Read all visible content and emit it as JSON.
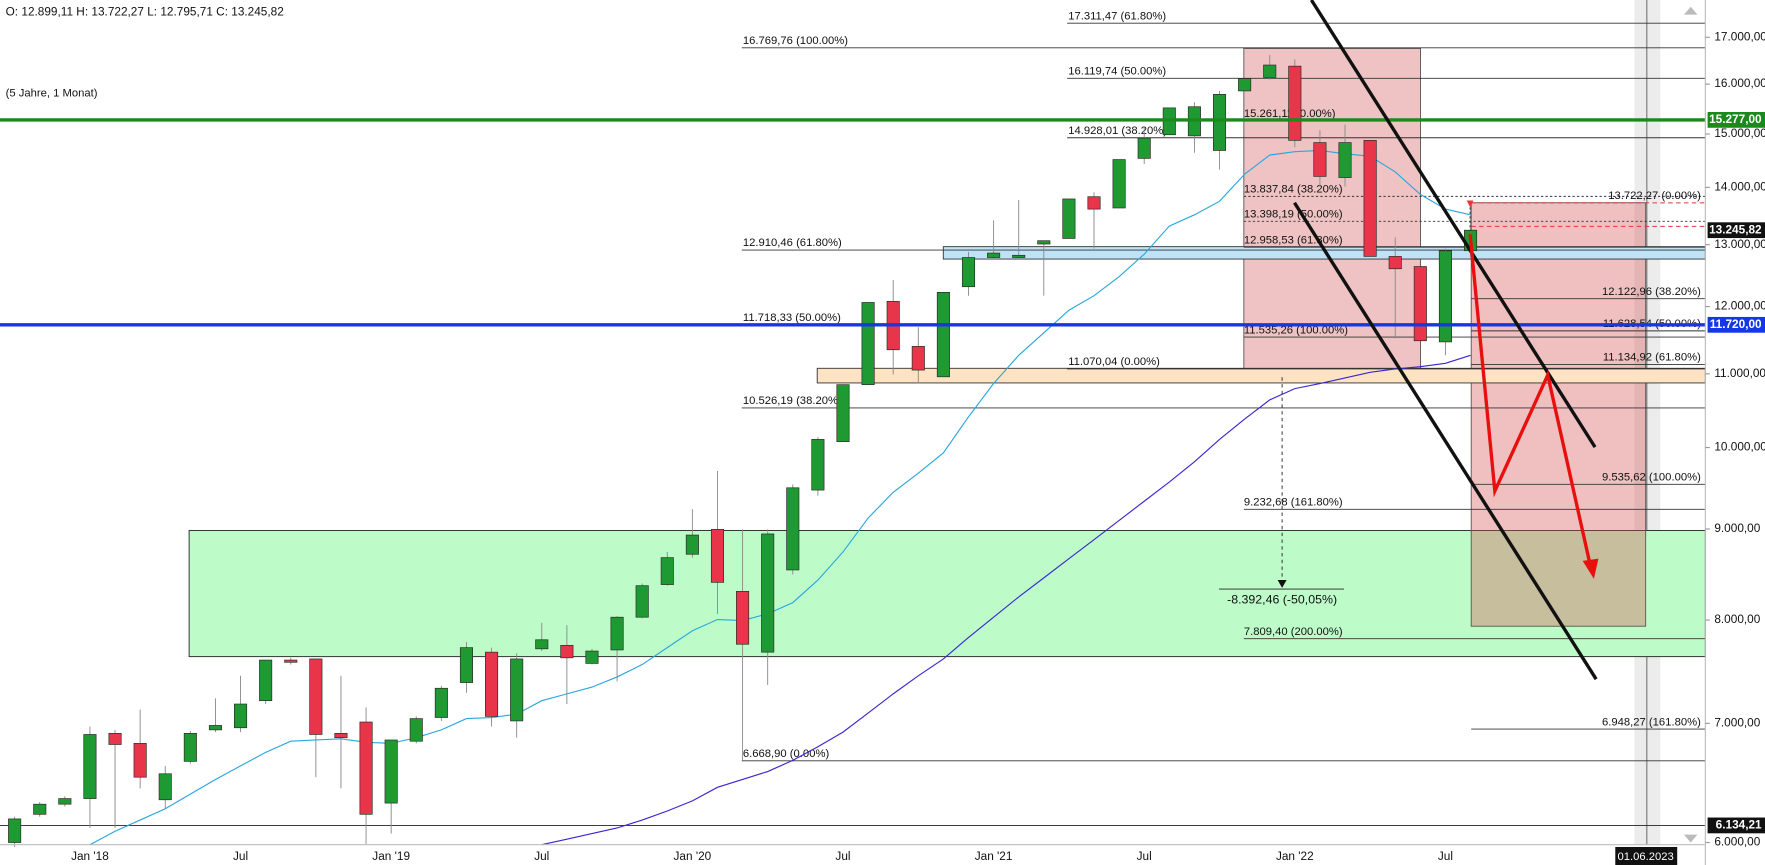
{
  "chart_data": {
    "type": "candlestick",
    "header": "O: 12.899,11  H: 13.722,27  L: 12.795,71  C: 13.245,82",
    "subtitle": "(5 Jahre, 1 Monat)",
    "log_scale": true,
    "ylim": [
      5983,
      17839
    ],
    "yticks": [
      {
        "value": 17000,
        "label": "17.000,00"
      },
      {
        "value": 16000,
        "label": "16.000,00"
      },
      {
        "value": 15000,
        "label": "15.000,00"
      },
      {
        "value": 14000,
        "label": "14.000,00"
      },
      {
        "value": 13000,
        "label": "13.000,00"
      },
      {
        "value": 12000,
        "label": "12.000,00"
      },
      {
        "value": 11000,
        "label": "11.000,00"
      },
      {
        "value": 10000,
        "label": "10.000,00"
      },
      {
        "value": 9000,
        "label": "9.000,00"
      },
      {
        "value": 8000,
        "label": "8.000,00"
      },
      {
        "value": 7000,
        "label": "7.000,00"
      },
      {
        "value": 6000,
        "label": "6.000,00"
      }
    ],
    "grid": false,
    "up_color": "#1f9a32",
    "down_color": "#e8354a",
    "categories": [
      null,
      null,
      null,
      "Jan '18",
      null,
      null,
      null,
      null,
      null,
      "Jul",
      null,
      null,
      null,
      null,
      null,
      "Jan '19",
      null,
      null,
      null,
      null,
      null,
      "Jul",
      null,
      null,
      null,
      null,
      null,
      "Jan '20",
      null,
      null,
      null,
      null,
      null,
      "Jul",
      null,
      null,
      null,
      null,
      null,
      "Jan '21",
      null,
      null,
      null,
      null,
      null,
      "Jul",
      null,
      null,
      null,
      null,
      null,
      "Jan '22",
      null,
      null,
      null,
      null,
      null,
      "Jul",
      null
    ],
    "open": [
      6000,
      6223,
      6305,
      6351,
      6910,
      6821,
      6341,
      6664,
      6941,
      6960,
      7208,
      7597,
      7608,
      6910,
      7012,
      6314,
      6840,
      7053,
      7379,
      7675,
      7022,
      7708,
      7743,
      7564,
      7697,
      8030,
      8376,
      8711,
      8996,
      8303,
      7675,
      8536,
      9465,
      10077,
      10847,
      12082,
      11398,
      10958,
      12312,
      12786,
      12786,
      13011,
      13105,
      13832,
      13632,
      14535,
      14986,
      14964,
      14684,
      15860,
      16139,
      16376,
      14835,
      14179,
      14878,
      12804,
      12638,
      11464,
      12899.11
    ],
    "high": [
      6204,
      6323,
      6370,
      6971,
      6941,
      7125,
      6625,
      6931,
      7230,
      7444,
      7597,
      7619,
      7608,
      7444,
      7146,
      6851,
      7063,
      7347,
      7777,
      7720,
      7664,
      7972,
      7948,
      7708,
      8041,
      8388,
      8737,
      9235,
      9702,
      8996,
      8996,
      9534,
      10136,
      10847,
      12064,
      12420,
      11684,
      12223,
      12879,
      13415,
      13772,
      13067,
      13792,
      13913,
      14513,
      15140,
      15516,
      15630,
      15860,
      16139,
      16617,
      16520,
      15074,
      15184,
      14878,
      13125,
      12638,
      12935,
      13722.27
    ],
    "low": [
      5965,
      6204,
      6286,
      6114,
      6114,
      6435,
      6268,
      6644,
      6921,
      6921,
      7177,
      7553,
      6529,
      6435,
      5983,
      6070,
      6821,
      7022,
      7283,
      6971,
      6871,
      7686,
      7177,
      7553,
      7390,
      8018,
      8364,
      8673,
      8065,
      6669,
      7357,
      8486,
      9397,
      10077,
      10847,
      10990,
      10863,
      10958,
      12170,
      12749,
      12749,
      12170,
      13105,
      12935,
      13632,
      14429,
      14986,
      14641,
      14324,
      15860,
      16092,
      14748,
      14015,
      14015,
      12804,
      11515,
      11481,
      11267,
      12795.71
    ],
    "close": [
      6186,
      6305,
      6351,
      6900,
      6811,
      6529,
      6558,
      6910,
      6981,
      7177,
      7597,
      7575,
      6900,
      6871,
      6223,
      6851,
      7043,
      7325,
      7720,
      7063,
      7608,
      7799,
      7619,
      7686,
      8030,
      8364,
      8673,
      8930,
      8400,
      7754,
      8943,
      9493,
      10106,
      10847,
      12064,
      11348,
      11054,
      12223,
      12786,
      12860,
      12823,
      13067,
      13792,
      13612,
      14513,
      14921,
      15516,
      15539,
      15790,
      16115,
      16400,
      14878,
      14200,
      14835,
      12804,
      12601,
      11481,
      12897,
      13245.82
    ],
    "ma_lines": [
      {
        "color": "#2aa6de",
        "values": [
          null,
          null,
          null,
          5983,
          6088,
          6177,
          6268,
          6388,
          6510,
          6625,
          6742,
          6840,
          6851,
          6861,
          6830,
          6821,
          6871,
          6941,
          7043,
          7053,
          7084,
          7208,
          7272,
          7336,
          7433,
          7553,
          7720,
          7890,
          8006,
          7995,
          8065,
          8183,
          8425,
          8737,
          9128,
          9438,
          9674,
          9932,
          10406,
          10863,
          11267,
          11599,
          11943,
          12170,
          12473,
          12841,
          13317,
          13512,
          13750,
          14241,
          14598,
          14662,
          14684,
          14620,
          14577,
          14283,
          13873,
          13612,
          13512
        ]
      },
      {
        "color": "#3826d4",
        "values": [
          null,
          null,
          null,
          null,
          null,
          null,
          null,
          null,
          null,
          null,
          null,
          null,
          null,
          null,
          null,
          null,
          null,
          null,
          null,
          null,
          null,
          5983,
          6026,
          6070,
          6114,
          6177,
          6250,
          6332,
          6444,
          6510,
          6577,
          6673,
          6791,
          6921,
          7094,
          7272,
          7444,
          7608,
          7822,
          8030,
          8243,
          8449,
          8661,
          8877,
          9101,
          9329,
          9563,
          9817,
          10106,
          10376,
          10636,
          10792,
          10863,
          10942,
          11022,
          11070,
          11102,
          11151,
          11267
        ]
      }
    ],
    "fib_levels": [
      [
        {
          "value": 16769.76,
          "label": "16.769,76 (100.00%)"
        },
        {
          "value": 12910.46,
          "label": "12.910,46 (61.80%)"
        },
        {
          "value": 11718.33,
          "label": "11.718,33 (50.00%)"
        },
        {
          "value": 10526.19,
          "label": "10.526,19 (38.20%)"
        },
        {
          "value": 6668.9,
          "label": "6.668,90 (0.00%)"
        }
      ],
      [
        {
          "value": 17311.47,
          "label": "17.311,47 (61.80%)"
        },
        {
          "value": 16119.74,
          "label": "16.119,74 (50.00%)"
        },
        {
          "value": 14928.01,
          "label": "14.928,01 (38.20%)"
        },
        {
          "value": 11070.04,
          "label": "11.070,04 (0.00%)"
        }
      ],
      [
        {
          "value": 15261.11,
          "label": "15.261,11 (0.00%)"
        },
        {
          "value": 13837.84,
          "label": "13.837,84 (38.20%)"
        },
        {
          "value": 13398.19,
          "label": "13.398,19 (50.00%)"
        },
        {
          "value": 12958.53,
          "label": "12.958,53 (61.80%)"
        },
        {
          "value": 11535.26,
          "label": "11.535,26 (100.00%)"
        },
        {
          "value": 9232.68,
          "label": "9.232,68 (161.80%)"
        },
        {
          "value": 7809.4,
          "label": "7.809,40 (200.00%)"
        }
      ],
      [
        {
          "value": 13722.27,
          "label": "13.722,27 (0.00%)"
        },
        {
          "value": 12122.96,
          "label": "12.122,96 (38.20%)"
        },
        {
          "value": 11628.54,
          "label": "11.628,54 (50.00%)"
        },
        {
          "value": 11134.92,
          "label": "11.134,92 (61.80%)"
        },
        {
          "value": 9535.62,
          "label": "9.535,62 (100.00%)"
        },
        {
          "value": 6948.27,
          "label": "6.948,27 (161.80%)"
        }
      ]
    ],
    "price_lines": [
      {
        "value": 15277,
        "label": "15.277,00",
        "color": "#1b8a1b"
      },
      {
        "value": 11720,
        "label": "11.720,00",
        "color": "#1538e6"
      }
    ],
    "low_line": {
      "value": 6134.21,
      "label": "6.134,21"
    },
    "last_price_label": "13.245,82",
    "measure_label": "-8.392,46 (-50,05%)",
    "cursor_date": "01.06.2023"
  }
}
